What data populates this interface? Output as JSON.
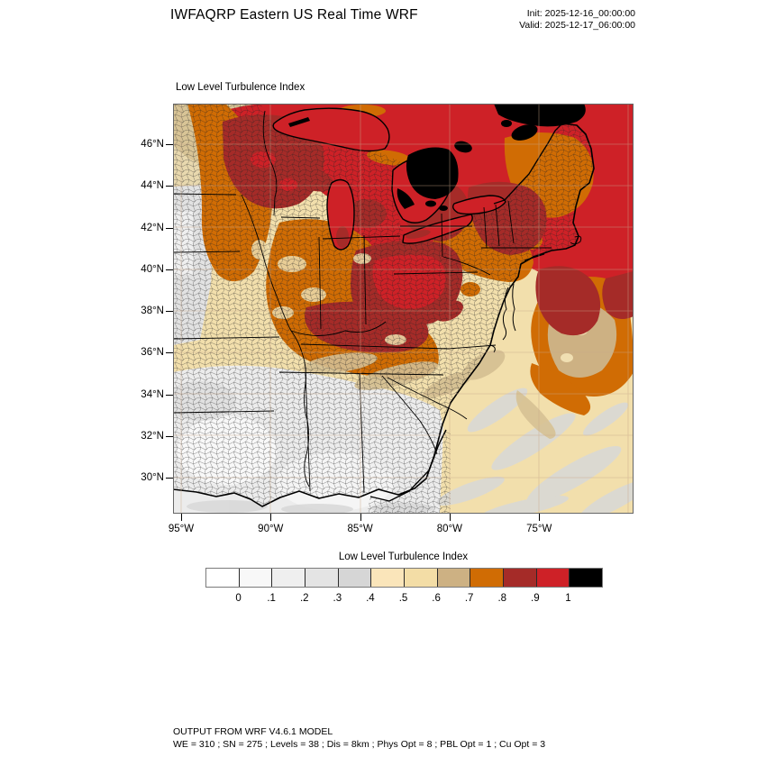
{
  "header": {
    "title": "IWFAQRP Eastern US Real Time WRF",
    "init": "Init: 2025-12-16_00:00:00",
    "valid": "Valid: 2025-12-17_06:00:00"
  },
  "map": {
    "title": "Low Level Turbulence Index",
    "lat_tick_labels": [
      "46°N",
      "44°N",
      "42°N",
      "40°N",
      "38°N",
      "36°N",
      "34°N",
      "32°N",
      "30°N"
    ],
    "lon_tick_labels": [
      "95°W",
      "90°W",
      "85°W",
      "80°W",
      "75°W"
    ]
  },
  "colorbar": {
    "title": "Low Level Turbulence Index",
    "tick_labels": [
      "0",
      ".1",
      ".2",
      ".3",
      ".4",
      ".5",
      ".6",
      ".7",
      ".8",
      ".9",
      "1"
    ],
    "cell_colors": [
      "#FFFFFF",
      "#F8F8F8",
      "#EFEFEF",
      "#E4E4E4",
      "#D6D6D6",
      "#FAE5BA",
      "#F3DDA6",
      "#CDB183",
      "#D06C04",
      "#A52B28",
      "#CE2127",
      "#000000"
    ]
  },
  "footer": {
    "line1": "OUTPUT FROM WRF V4.6.1 MODEL",
    "line2": "WE = 310 ; SN = 275 ; Levels = 38 ; Dis = 8km ; Phys Opt = 8 ; PBL Opt = 1 ; Cu Opt = 3"
  },
  "palette": {
    "high_red": "#CE2127",
    "dark_red": "#A52B28",
    "orange": "#D06C04",
    "tan": "#CDB183",
    "cream": "#F2DFAC",
    "light_gray": "#D8D8D8",
    "black": "#000000"
  },
  "chart_data": {
    "type": "heatmap",
    "title": "Low Level Turbulence Index",
    "region": "Eastern US",
    "x_ticks": [
      "95°W",
      "90°W",
      "85°W",
      "80°W",
      "75°W"
    ],
    "y_ticks": [
      "46°N",
      "44°N",
      "42°N",
      "40°N",
      "38°N",
      "36°N",
      "34°N",
      "32°N",
      "30°N"
    ],
    "colorbar_levels": [
      0,
      0.1,
      0.2,
      0.3,
      0.4,
      0.5,
      0.6,
      0.7,
      0.8,
      0.9,
      1
    ],
    "colorbar_colors": [
      "#FFFFFF",
      "#F8F8F8",
      "#EFEFEF",
      "#E4E4E4",
      "#D6D6D6",
      "#FAE5BA",
      "#F3DDA6",
      "#CDB183",
      "#D06C04",
      "#A52B28",
      "#CE2127",
      "#000000"
    ],
    "legend_position": "bottom"
  }
}
